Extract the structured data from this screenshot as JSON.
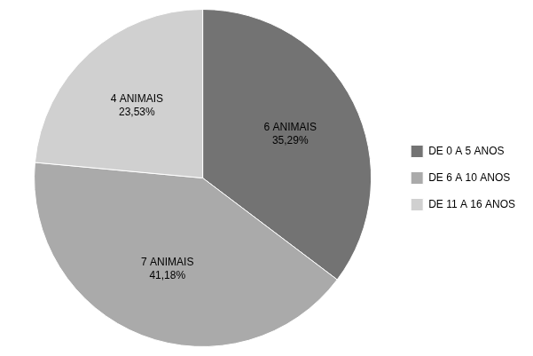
{
  "chart_data": {
    "type": "pie",
    "categories": [
      "DE 0 A 5 ANOS",
      "DE 6 A 10 ANOS",
      "DE 11 A 16 ANOS"
    ],
    "values": [
      6,
      7,
      4
    ],
    "value_labels": [
      "6 ANIMAIS\n35,29%",
      "7 ANIMAIS\n41,18%",
      "4 ANIMAIS\n23,53%"
    ],
    "colors": [
      "#737373",
      "#aaaaaa",
      "#d0d0d0"
    ],
    "data_labels": true,
    "legend": "right"
  }
}
